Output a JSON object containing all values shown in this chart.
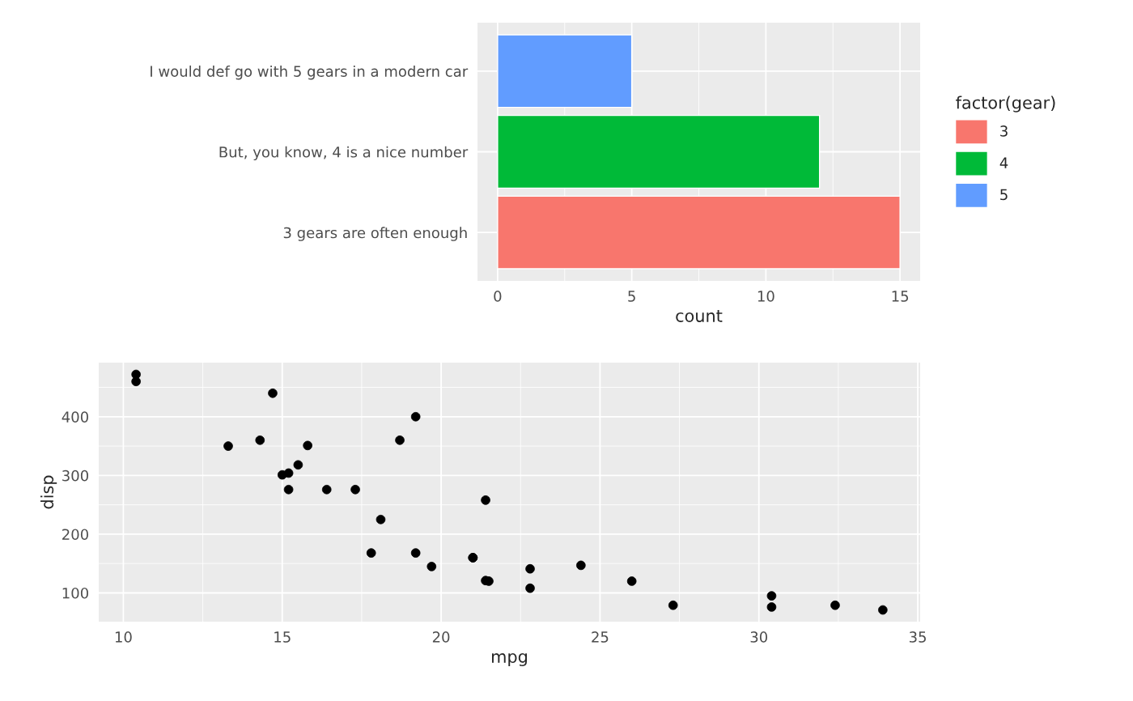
{
  "chart_data": [
    {
      "type": "bar",
      "orientation": "horizontal",
      "xlabel": "count",
      "legend_title": "factor(gear)",
      "legend": "right",
      "grid": true,
      "categories": [
        "I would def go with 5 gears in a modern car",
        "But, you know, 4 is a nice number",
        "3 gears are often enough"
      ],
      "series": [
        {
          "name": "3",
          "color": "#f8766d",
          "values": [
            null,
            null,
            15
          ]
        },
        {
          "name": "4",
          "color": "#00ba38",
          "values": [
            null,
            12,
            null
          ]
        },
        {
          "name": "5",
          "color": "#619cff",
          "values": [
            5,
            null,
            null
          ]
        }
      ],
      "xlim": [
        -0.75,
        15.75
      ],
      "xticks": [
        0,
        5,
        10,
        15
      ]
    },
    {
      "type": "scatter",
      "xlabel": "mpg",
      "ylabel": "disp",
      "grid": true,
      "marker": "circle",
      "series": [
        {
          "color": "#000000",
          "x": [
            21.0,
            21.0,
            22.8,
            21.4,
            18.7,
            18.1,
            14.3,
            24.4,
            22.8,
            19.2,
            17.8,
            16.4,
            17.3,
            15.2,
            10.4,
            10.4,
            14.7,
            32.4,
            30.4,
            33.9,
            21.5,
            15.5,
            15.2,
            13.3,
            19.2,
            27.3,
            26.0,
            30.4,
            15.8,
            19.7,
            15.0,
            21.4
          ],
          "values": [
            160,
            160,
            108,
            258,
            360,
            225,
            360,
            147,
            141,
            168,
            168,
            276,
            276,
            276,
            472,
            460,
            440,
            79,
            76,
            71,
            120,
            318,
            304,
            350,
            400,
            79,
            120,
            95,
            351,
            145,
            301,
            121
          ]
        }
      ],
      "xlim": [
        9.225,
        35.075
      ],
      "xticks": [
        10,
        15,
        20,
        25,
        30,
        35
      ],
      "ylim": [
        51.05,
        492.05
      ],
      "yticks": [
        100,
        200,
        300,
        400
      ]
    }
  ]
}
